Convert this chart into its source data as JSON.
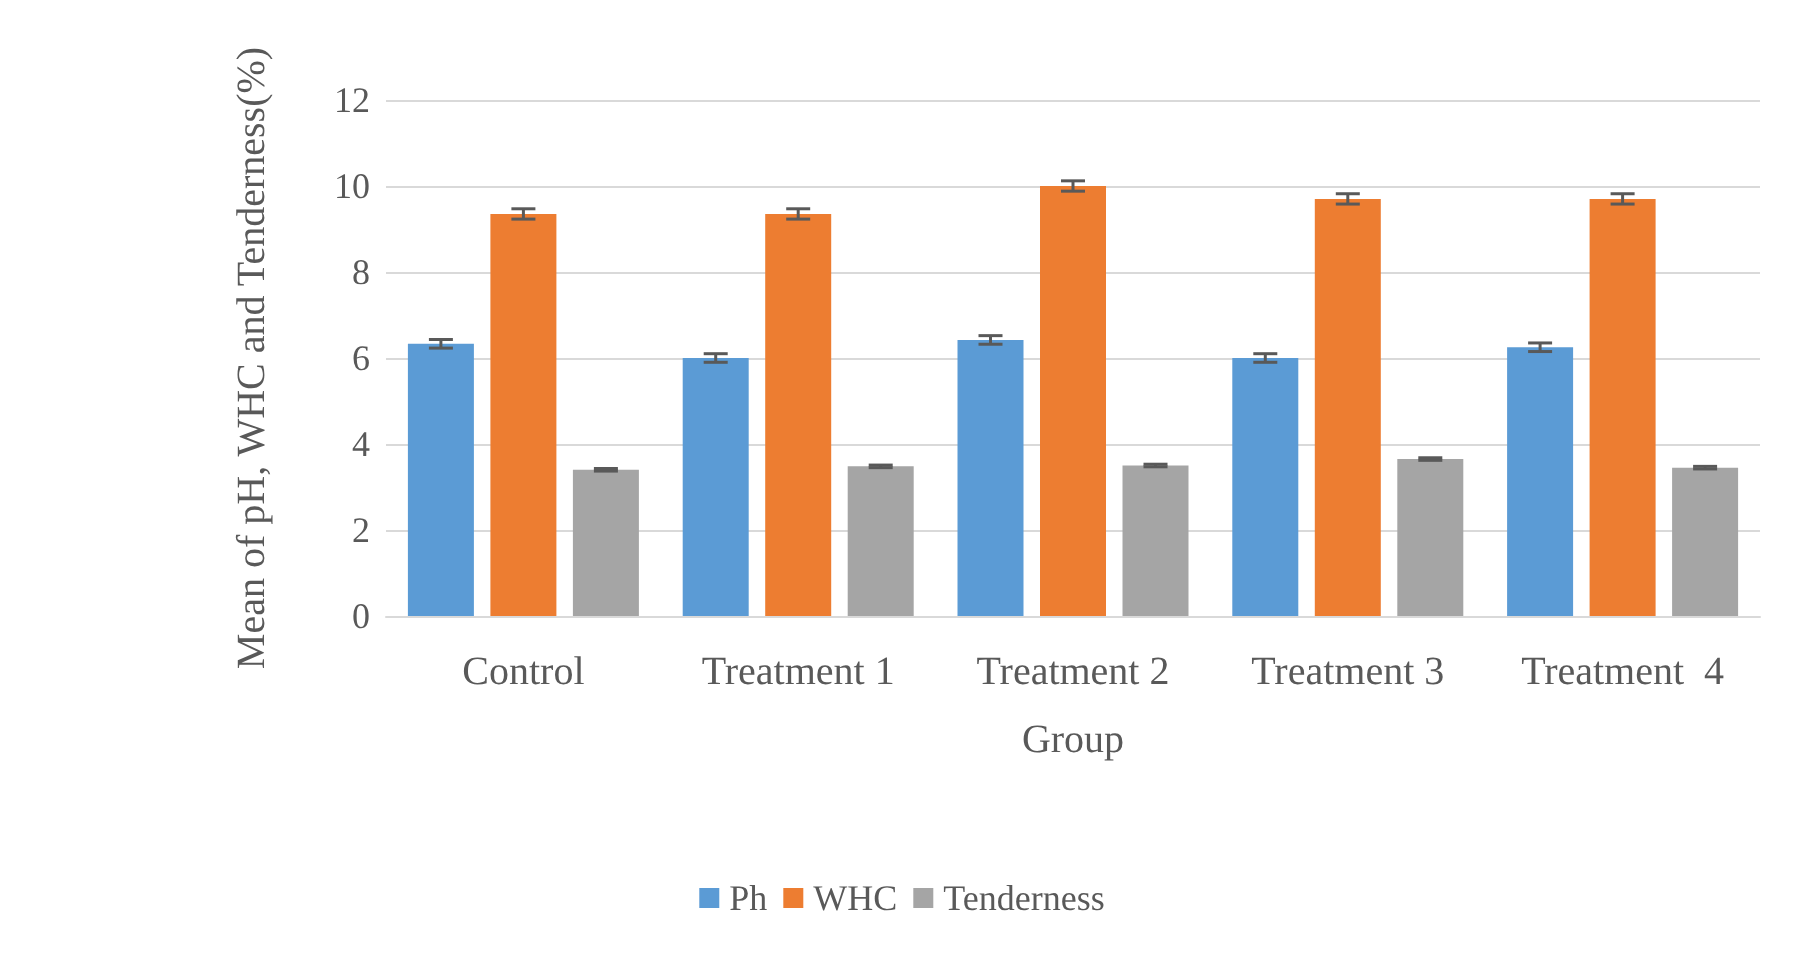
{
  "chart_data": {
    "type": "bar",
    "xlabel": "Group",
    "ylabel": "Mean of pH, WHC and Tenderness(%)",
    "categories": [
      "Control",
      "Treatment 1",
      "Treatment 2",
      "Treatment 3",
      "Treatment  4"
    ],
    "series": [
      {
        "name": "Ph",
        "color": "#5b9bd5",
        "values": [
          6.33,
          6.0,
          6.42,
          6.0,
          6.25
        ],
        "errors": [
          0.1,
          0.1,
          0.1,
          0.1,
          0.1
        ]
      },
      {
        "name": "WHC",
        "color": "#ed7d31",
        "values": [
          9.35,
          9.35,
          10.0,
          9.7,
          9.7
        ],
        "errors": [
          0.12,
          0.12,
          0.12,
          0.12,
          0.12
        ]
      },
      {
        "name": "Tenderness",
        "color": "#a5a5a5",
        "values": [
          3.4,
          3.48,
          3.5,
          3.65,
          3.45
        ],
        "errors": [
          0.03,
          0.03,
          0.03,
          0.03,
          0.03
        ]
      }
    ],
    "ylim": [
      0,
      12
    ],
    "yticks": [
      0,
      2,
      4,
      6,
      8,
      10,
      12
    ],
    "grid": "y",
    "legend": "bottom"
  }
}
